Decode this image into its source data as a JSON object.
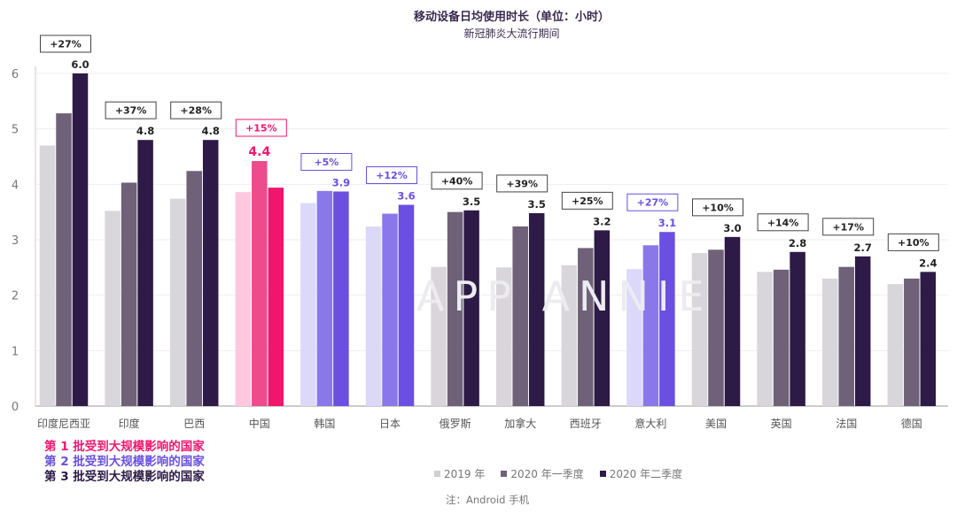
{
  "title": "移动设备日均使用时长（单位：小时）",
  "subtitle": "新冠肺炎大流行期间",
  "watermark": "APP ANNIE",
  "note": "注：Android 手机",
  "wave_legend": [
    {
      "label": "第 1 批受到大规模影响的国家",
      "color": "#f0166e"
    },
    {
      "label": "第 2 批受到大规模影响的国家",
      "color": "#6a4fe0"
    },
    {
      "label": "第 3 批受到大规模影响的国家",
      "color": "#2d1a46"
    }
  ],
  "chart_data": {
    "type": "bar",
    "title": "移动设备日均使用时长（单位：小时）",
    "subtitle": "新冠肺炎大流行期间",
    "ylim": [
      0,
      6
    ],
    "yticks": [
      0,
      1,
      2,
      3,
      4,
      5,
      6
    ],
    "grid": true,
    "legend_position": "bottom-center",
    "series_names": [
      "2019 年",
      "2020 年一季度",
      "2020 年二季度"
    ],
    "categories": [
      {
        "name": "印度尼西亚",
        "wave": 3,
        "change": "+27%",
        "values": [
          4.7,
          5.28,
          6.0
        ],
        "label": "6.0"
      },
      {
        "name": "印度",
        "wave": 3,
        "change": "+37%",
        "values": [
          3.52,
          4.03,
          4.8
        ],
        "label": "4.8"
      },
      {
        "name": "巴西",
        "wave": 3,
        "change": "+28%",
        "values": [
          3.74,
          4.24,
          4.8
        ],
        "label": "4.8"
      },
      {
        "name": "中国",
        "wave": 1,
        "change": "+15%",
        "values": [
          3.86,
          4.42,
          3.94
        ],
        "label": "4.4",
        "label_series": 1
      },
      {
        "name": "韩国",
        "wave": 2,
        "change": "+5%",
        "values": [
          3.66,
          3.88,
          3.87
        ],
        "label": "3.9"
      },
      {
        "name": "日本",
        "wave": 2,
        "change": "+12%",
        "values": [
          3.24,
          3.47,
          3.63
        ],
        "label": "3.6"
      },
      {
        "name": "俄罗斯",
        "wave": 3,
        "change": "+40%",
        "values": [
          2.51,
          3.5,
          3.53
        ],
        "label": "3.5"
      },
      {
        "name": "加拿大",
        "wave": 3,
        "change": "+39%",
        "values": [
          2.5,
          3.24,
          3.48
        ],
        "label": "3.5"
      },
      {
        "name": "西班牙",
        "wave": 3,
        "change": "+25%",
        "values": [
          2.54,
          2.85,
          3.17
        ],
        "label": "3.2"
      },
      {
        "name": "意大利",
        "wave": 2,
        "change": "+27%",
        "values": [
          2.47,
          2.9,
          3.14
        ],
        "label": "3.1"
      },
      {
        "name": "美国",
        "wave": 3,
        "change": "+10%",
        "values": [
          2.76,
          2.82,
          3.05
        ],
        "label": "3.0"
      },
      {
        "name": "英国",
        "wave": 3,
        "change": "+14%",
        "values": [
          2.42,
          2.46,
          2.78
        ],
        "label": "2.8"
      },
      {
        "name": "法国",
        "wave": 3,
        "change": "+17%",
        "values": [
          2.3,
          2.51,
          2.7
        ],
        "label": "2.7"
      },
      {
        "name": "德国",
        "wave": 3,
        "change": "+10%",
        "values": [
          2.2,
          2.3,
          2.42
        ],
        "label": "2.4"
      }
    ]
  },
  "palettes": {
    "1": [
      "#ffc8de",
      "#ee4b8c",
      "#f0166e"
    ],
    "2": [
      "#dcd8fa",
      "#8a78ea",
      "#6a4fe0"
    ],
    "3": [
      "#d8d6db",
      "#6e6178",
      "#2d1a46"
    ]
  },
  "legend_colors": [
    "#d0ced4",
    "#6e6178",
    "#2d1a46"
  ],
  "axis_color": "#777777",
  "grid_color": "#eeeeee"
}
